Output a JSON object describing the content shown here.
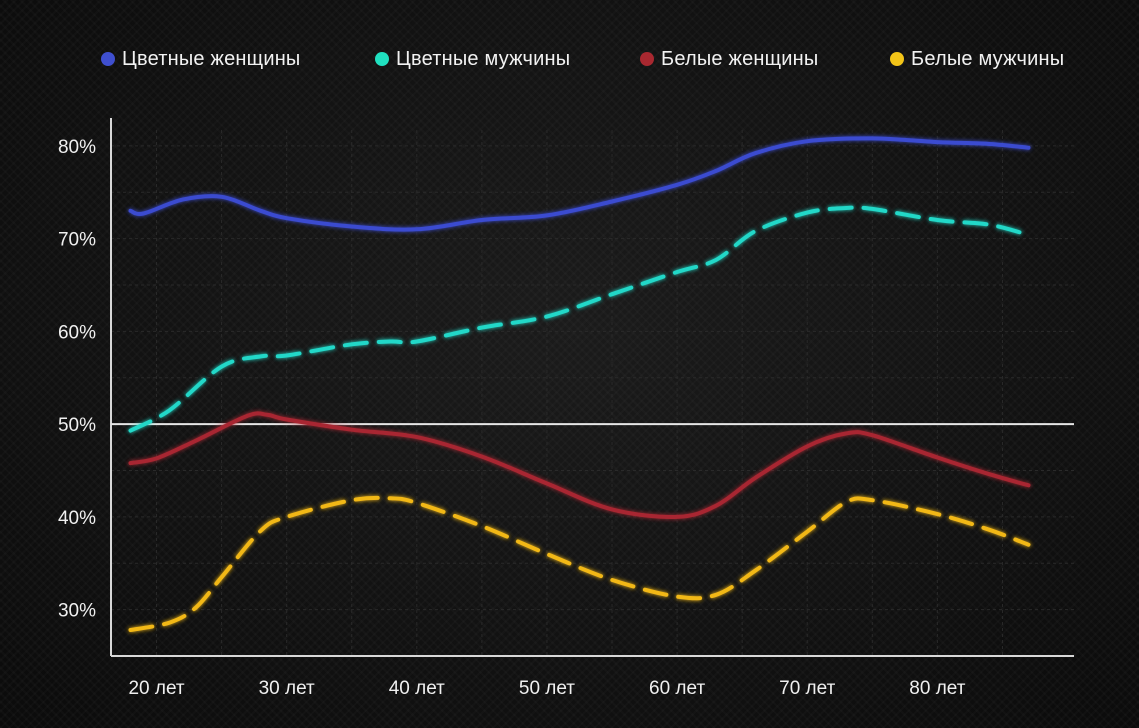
{
  "legend": {
    "items": [
      {
        "label": "Цветные женщины",
        "color": "#3f4fcf"
      },
      {
        "label": "Цветные мужчины",
        "color": "#20e0c0"
      },
      {
        "label": "Белые женщины",
        "color": "#a82830"
      },
      {
        "label": "Белые мужчины",
        "color": "#f2c418"
      }
    ]
  },
  "chart_data": {
    "type": "line",
    "title": "",
    "xlabel": "",
    "ylabel": "",
    "x_ticks": [
      "20 лет",
      "30 лет",
      "40 лет",
      "50 лет",
      "60 лет",
      "70 лет",
      "80 лет"
    ],
    "x_tick_values": [
      20,
      30,
      40,
      50,
      60,
      70,
      80
    ],
    "y_ticks": [
      "30%",
      "40%",
      "50%",
      "60%",
      "70%",
      "80%"
    ],
    "y_tick_values": [
      30,
      40,
      50,
      60,
      70,
      80
    ],
    "xlim": [
      16.5,
      90.5
    ],
    "ylim": [
      25,
      83
    ],
    "reference_line": 50,
    "grid": true,
    "legend_position": "top",
    "series": [
      {
        "name": "Цветные женщины",
        "color": "#3a4bd0",
        "style": "solid",
        "x": [
          18,
          19,
          22,
          25,
          28,
          30,
          35,
          40,
          45,
          50,
          55,
          60,
          63,
          66,
          70,
          75,
          80,
          84,
          87
        ],
        "y": [
          73.0,
          72.7,
          74.2,
          74.5,
          73.0,
          72.2,
          71.3,
          71.0,
          72.0,
          72.5,
          74.0,
          75.8,
          77.3,
          79.2,
          80.5,
          80.8,
          80.4,
          80.2,
          79.8
        ]
      },
      {
        "name": "Цветные мужчины",
        "color": "#20d8c8",
        "style": "dashed",
        "x": [
          18,
          21,
          25,
          28,
          30,
          35,
          38,
          40,
          45,
          50,
          55,
          60,
          63,
          66,
          70,
          73,
          75,
          80,
          84,
          87
        ],
        "y": [
          49.3,
          51.5,
          56.2,
          57.3,
          57.4,
          58.6,
          58.9,
          58.9,
          60.4,
          61.6,
          64.0,
          66.4,
          67.7,
          70.8,
          72.8,
          73.3,
          73.2,
          72.0,
          71.5,
          70.4
        ]
      },
      {
        "name": "Белые женщины",
        "color": "#a82830",
        "style": "solid",
        "x": [
          18,
          20,
          23,
          27,
          28.5,
          30,
          35,
          40,
          45,
          50,
          55,
          60,
          63,
          66,
          70,
          73,
          75,
          80,
          84,
          87
        ],
        "y": [
          45.8,
          46.3,
          48.2,
          50.9,
          51.0,
          50.5,
          49.4,
          48.6,
          46.5,
          43.6,
          40.8,
          40.0,
          41.2,
          44.2,
          47.6,
          49.0,
          48.8,
          46.4,
          44.6,
          43.4
        ]
      },
      {
        "name": "Белые мужчины",
        "color": "#f2b818",
        "style": "dashed",
        "x": [
          18,
          21,
          23,
          25,
          28,
          30,
          35,
          38,
          40,
          45,
          50,
          55,
          60,
          63,
          66,
          70,
          73,
          75,
          80,
          84,
          87
        ],
        "y": [
          27.8,
          28.6,
          30.2,
          33.5,
          38.5,
          40.0,
          41.8,
          42.0,
          41.5,
          39.0,
          36.0,
          33.2,
          31.4,
          31.6,
          34.2,
          38.4,
          41.6,
          41.8,
          40.3,
          38.6,
          37.0
        ]
      }
    ]
  }
}
